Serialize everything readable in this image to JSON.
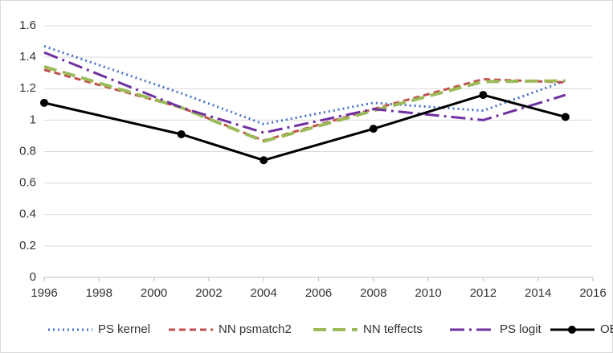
{
  "chart_data": {
    "type": "line",
    "x": [
      1996,
      2001,
      2004,
      2008,
      2012,
      2015
    ],
    "series": [
      {
        "name": "PS kernel",
        "color": "#4472c4",
        "dash": "2 4",
        "width": 3,
        "values": [
          1.47,
          1.17,
          0.975,
          1.11,
          1.06,
          1.25
        ]
      },
      {
        "name": "NN psmatch2",
        "color": "#c0504d",
        "dash": "8 5",
        "width": 3,
        "values": [
          1.32,
          1.08,
          0.87,
          1.07,
          1.26,
          1.24
        ]
      },
      {
        "name": "NN teffects",
        "color": "#9bbb59",
        "dash": "16 8",
        "width": 4,
        "values": [
          1.34,
          1.08,
          0.865,
          1.06,
          1.245,
          1.25
        ]
      },
      {
        "name": "PS logit",
        "color": "#7030a0",
        "dash": "18 6 3 6",
        "width": 3,
        "values": [
          1.43,
          1.08,
          0.92,
          1.07,
          1.0,
          1.16
        ]
      },
      {
        "name": "OBD",
        "color": "#000000",
        "width": 3,
        "markers": true,
        "values": [
          1.11,
          0.91,
          0.745,
          0.945,
          1.16,
          1.02
        ]
      }
    ],
    "xlim": [
      1996,
      2016
    ],
    "xticks": [
      1996,
      1998,
      2000,
      2002,
      2004,
      2006,
      2008,
      2010,
      2012,
      2014,
      2016
    ],
    "ylim": [
      0,
      1.6
    ],
    "yticks": [
      0,
      0.2,
      0.4,
      0.6,
      0.8,
      1,
      1.2,
      1.4,
      1.6
    ],
    "grid": true,
    "legend": "bottom"
  }
}
